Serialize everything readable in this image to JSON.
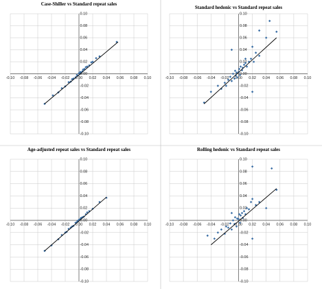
{
  "chart_data": [
    {
      "type": "scatter",
      "title": "Case-Shiller vs Standard repeat sales",
      "color": "#3a6ea5",
      "grid": true,
      "x": [
        -0.05,
        -0.038,
        -0.03,
        -0.025,
        -0.02,
        -0.015,
        -0.012,
        -0.01,
        -0.008,
        -0.005,
        -0.003,
        -0.002,
        0,
        0.001,
        0.002,
        0.003,
        0.005,
        0.006,
        0.008,
        0.01,
        0.012,
        0.015,
        0.018,
        0.02,
        0.025,
        0.03,
        0.055
      ],
      "values": [
        -0.05,
        -0.036,
        -0.031,
        -0.024,
        -0.021,
        -0.014,
        -0.013,
        -0.009,
        -0.008,
        -0.006,
        -0.002,
        -0.003,
        0.001,
        0,
        0.003,
        0.002,
        0.004,
        0.007,
        0.008,
        0.011,
        0.012,
        0.014,
        0.019,
        0.02,
        0.026,
        0.029,
        0.053
      ],
      "trendline": {
        "x": [
          -0.05,
          0.057
        ],
        "values": [
          -0.05,
          0.053
        ]
      },
      "xlim": [
        -0.1,
        0.1
      ],
      "ylim": [
        -0.1,
        0.1
      ],
      "xticks": [
        {
          "value": -0.1,
          "label": "-0.10"
        },
        {
          "value": -0.08,
          "label": "-0.08"
        },
        {
          "value": -0.06,
          "label": "-0.06"
        },
        {
          "value": -0.04,
          "label": "-0.04"
        },
        {
          "value": -0.02,
          "label": "-0.02"
        },
        {
          "value": 0,
          "label": "0.00"
        },
        {
          "value": 0.02,
          "label": "0.02"
        },
        {
          "value": 0.04,
          "label": "0.04"
        },
        {
          "value": 0.06,
          "label": "0.06"
        },
        {
          "value": 0.08,
          "label": "0.08"
        },
        {
          "value": 0.1,
          "label": "0.10"
        }
      ],
      "yticks": [
        {
          "value": -0.1,
          "label": "-0.10"
        },
        {
          "value": -0.08,
          "label": "-0.08"
        },
        {
          "value": -0.06,
          "label": "-0.06"
        },
        {
          "value": -0.04,
          "label": "-0.04"
        },
        {
          "value": -0.02,
          "label": "-0.02"
        },
        {
          "value": 0,
          "label": "0.00"
        },
        {
          "value": 0.02,
          "label": "0.02"
        },
        {
          "value": 0.04,
          "label": "0.04"
        },
        {
          "value": 0.06,
          "label": "0.06"
        },
        {
          "value": 0.08,
          "label": "0.08"
        },
        {
          "value": 0.1,
          "label": "0.10"
        }
      ]
    },
    {
      "type": "scatter",
      "title": "Standard hedonic vs Standard repeat sales",
      "color": "#3a6ea5",
      "grid": true,
      "x": [
        -0.05,
        -0.04,
        -0.03,
        -0.025,
        -0.02,
        -0.018,
        -0.015,
        -0.012,
        -0.01,
        -0.008,
        -0.006,
        -0.005,
        -0.004,
        -0.003,
        -0.002,
        0,
        0.001,
        0.002,
        0.003,
        0.005,
        0.006,
        0.008,
        0.01,
        0.012,
        0.015,
        0.018,
        0.02,
        0.02,
        0.022,
        0.025,
        0.03,
        0.03,
        0.04,
        0.045,
        0.055,
        -0.01,
        0.01
      ],
      "values": [
        -0.048,
        -0.03,
        -0.02,
        -0.025,
        -0.015,
        -0.02,
        -0.01,
        -0.005,
        -0.012,
        0,
        -0.008,
        0.005,
        -0.003,
        0.002,
        -0.006,
        0.003,
        0.008,
        -0.002,
        0.012,
        0.006,
        0.01,
        0.015,
        0.018,
        0.012,
        0.02,
        0.025,
        0.045,
        -0.03,
        0.02,
        0.035,
        0.03,
        0.072,
        0.06,
        0.088,
        0.07,
        0.04,
        0.025
      ],
      "trendline": {
        "x": [
          -0.05,
          0.055
        ],
        "values": [
          -0.05,
          0.06
        ]
      },
      "xlim": [
        -0.1,
        0.1
      ],
      "ylim": [
        -0.1,
        0.1
      ],
      "xticks": [
        {
          "value": -0.1,
          "label": "-0.10"
        },
        {
          "value": -0.08,
          "label": "-0.08"
        },
        {
          "value": -0.06,
          "label": "-0.06"
        },
        {
          "value": -0.04,
          "label": "-0.04"
        },
        {
          "value": -0.02,
          "label": "-0.02"
        },
        {
          "value": 0,
          "label": "0.00"
        },
        {
          "value": 0.02,
          "label": "0.02"
        },
        {
          "value": 0.04,
          "label": "0.04"
        },
        {
          "value": 0.06,
          "label": "0.06"
        },
        {
          "value": 0.08,
          "label": "0.08"
        },
        {
          "value": 0.1,
          "label": "0.10"
        }
      ],
      "yticks": [
        {
          "value": -0.1,
          "label": "-0.10"
        },
        {
          "value": -0.08,
          "label": "-0.08"
        },
        {
          "value": -0.06,
          "label": "-0.06"
        },
        {
          "value": -0.04,
          "label": "-0.04"
        },
        {
          "value": -0.02,
          "label": "-0.02"
        },
        {
          "value": 0,
          "label": "0.00"
        },
        {
          "value": 0.02,
          "label": "0.02"
        },
        {
          "value": 0.04,
          "label": "0.04"
        },
        {
          "value": 0.06,
          "label": "0.06"
        },
        {
          "value": 0.08,
          "label": "0.08"
        },
        {
          "value": 0.1,
          "label": "0.10"
        }
      ]
    },
    {
      "type": "scatter",
      "title": "Age-adjusted repeat sales vs Standard repeat sales",
      "color": "#3a6ea5",
      "grid": true,
      "x": [
        -0.05,
        -0.04,
        -0.03,
        -0.025,
        -0.02,
        -0.018,
        -0.015,
        -0.012,
        -0.01,
        -0.008,
        -0.005,
        -0.003,
        -0.002,
        0,
        0.002,
        0.003,
        0.005,
        0.007,
        0.01,
        0.012,
        0.015,
        0.02,
        0.03,
        0.04
      ],
      "values": [
        -0.05,
        -0.041,
        -0.031,
        -0.024,
        -0.02,
        -0.019,
        -0.014,
        -0.012,
        -0.01,
        -0.009,
        -0.004,
        -0.003,
        -0.001,
        0.001,
        0.002,
        0.004,
        0.005,
        0.006,
        0.01,
        0.013,
        0.015,
        0.019,
        0.03,
        0.037
      ],
      "trendline": {
        "x": [
          -0.05,
          0.04
        ],
        "values": [
          -0.05,
          0.038
        ]
      },
      "xlim": [
        -0.1,
        0.1
      ],
      "ylim": [
        -0.1,
        0.1
      ],
      "xticks": [
        {
          "value": -0.1,
          "label": "-0.10"
        },
        {
          "value": -0.08,
          "label": "-0.08"
        },
        {
          "value": -0.06,
          "label": "-0.06"
        },
        {
          "value": -0.04,
          "label": "-0.04"
        },
        {
          "value": -0.02,
          "label": "-0.02"
        },
        {
          "value": 0,
          "label": "0.00"
        },
        {
          "value": 0.02,
          "label": "0.02"
        },
        {
          "value": 0.04,
          "label": "0.04"
        },
        {
          "value": 0.06,
          "label": "0.06"
        },
        {
          "value": 0.08,
          "label": "0.08"
        },
        {
          "value": 0.1,
          "label": "0.10"
        }
      ],
      "yticks": [
        {
          "value": -0.1,
          "label": "-0.10"
        },
        {
          "value": -0.08,
          "label": "-0.08"
        },
        {
          "value": -0.06,
          "label": "-0.06"
        },
        {
          "value": -0.04,
          "label": "-0.04"
        },
        {
          "value": -0.02,
          "label": "-0.02"
        },
        {
          "value": 0,
          "label": "0.00"
        },
        {
          "value": 0.02,
          "label": "0.02"
        },
        {
          "value": 0.04,
          "label": "0.04"
        },
        {
          "value": 0.06,
          "label": "0.06"
        },
        {
          "value": 0.08,
          "label": "0.08"
        },
        {
          "value": 0.1,
          "label": "0.10"
        }
      ]
    },
    {
      "type": "scatter",
      "title": "Rolling hedonic vs Standard repeat sales",
      "color": "#3a6ea5",
      "grid": true,
      "x": [
        -0.045,
        -0.035,
        -0.03,
        -0.025,
        -0.02,
        -0.018,
        -0.015,
        -0.012,
        -0.01,
        -0.008,
        -0.006,
        -0.005,
        -0.003,
        -0.002,
        0,
        0.001,
        0.002,
        0.003,
        0.005,
        0.006,
        0.008,
        0.01,
        0.012,
        0.015,
        0.018,
        0.02,
        0.02,
        0.02,
        0.025,
        0.03,
        0.04,
        0.048,
        0.055,
        -0.01
      ],
      "values": [
        -0.025,
        -0.03,
        -0.02,
        -0.015,
        -0.022,
        -0.01,
        -0.012,
        -0.005,
        -0.015,
        0,
        -0.006,
        0.005,
        -0.01,
        0.003,
        0.002,
        0.01,
        -0.004,
        0.008,
        0.012,
        0.004,
        0.015,
        0.01,
        0.02,
        0.018,
        0.03,
        0.088,
        -0.03,
        0.035,
        0.025,
        0.03,
        0.02,
        0.085,
        0.05,
        0.012
      ],
      "trendline": {
        "x": [
          -0.04,
          0.055
        ],
        "values": [
          -0.04,
          0.052
        ]
      },
      "xlim": [
        -0.1,
        0.1
      ],
      "ylim": [
        -0.1,
        0.1
      ],
      "xticks": [
        {
          "value": -0.1,
          "label": "-0.10"
        },
        {
          "value": -0.08,
          "label": "-0.08"
        },
        {
          "value": -0.06,
          "label": "-0.06"
        },
        {
          "value": -0.04,
          "label": "-0.04"
        },
        {
          "value": -0.02,
          "label": "-0.02"
        },
        {
          "value": 0,
          "label": "0.00"
        },
        {
          "value": 0.02,
          "label": "0.02"
        },
        {
          "value": 0.04,
          "label": "0.04"
        },
        {
          "value": 0.06,
          "label": "0.06"
        },
        {
          "value": 0.08,
          "label": "0.08"
        },
        {
          "value": 0.1,
          "label": "0.10"
        }
      ],
      "yticks": [
        {
          "value": -0.1,
          "label": "-0.10"
        },
        {
          "value": -0.08,
          "label": "-0.08"
        },
        {
          "value": -0.06,
          "label": "-0.06"
        },
        {
          "value": -0.04,
          "label": "-0.04"
        },
        {
          "value": -0.02,
          "label": "-0.02"
        },
        {
          "value": 0,
          "label": "0.00"
        },
        {
          "value": 0.02,
          "label": "0.02"
        },
        {
          "value": 0.04,
          "label": "0.04"
        },
        {
          "value": 0.06,
          "label": "0.06"
        },
        {
          "value": 0.08,
          "label": "0.08"
        },
        {
          "value": 0.1,
          "label": "0.10"
        }
      ]
    }
  ]
}
